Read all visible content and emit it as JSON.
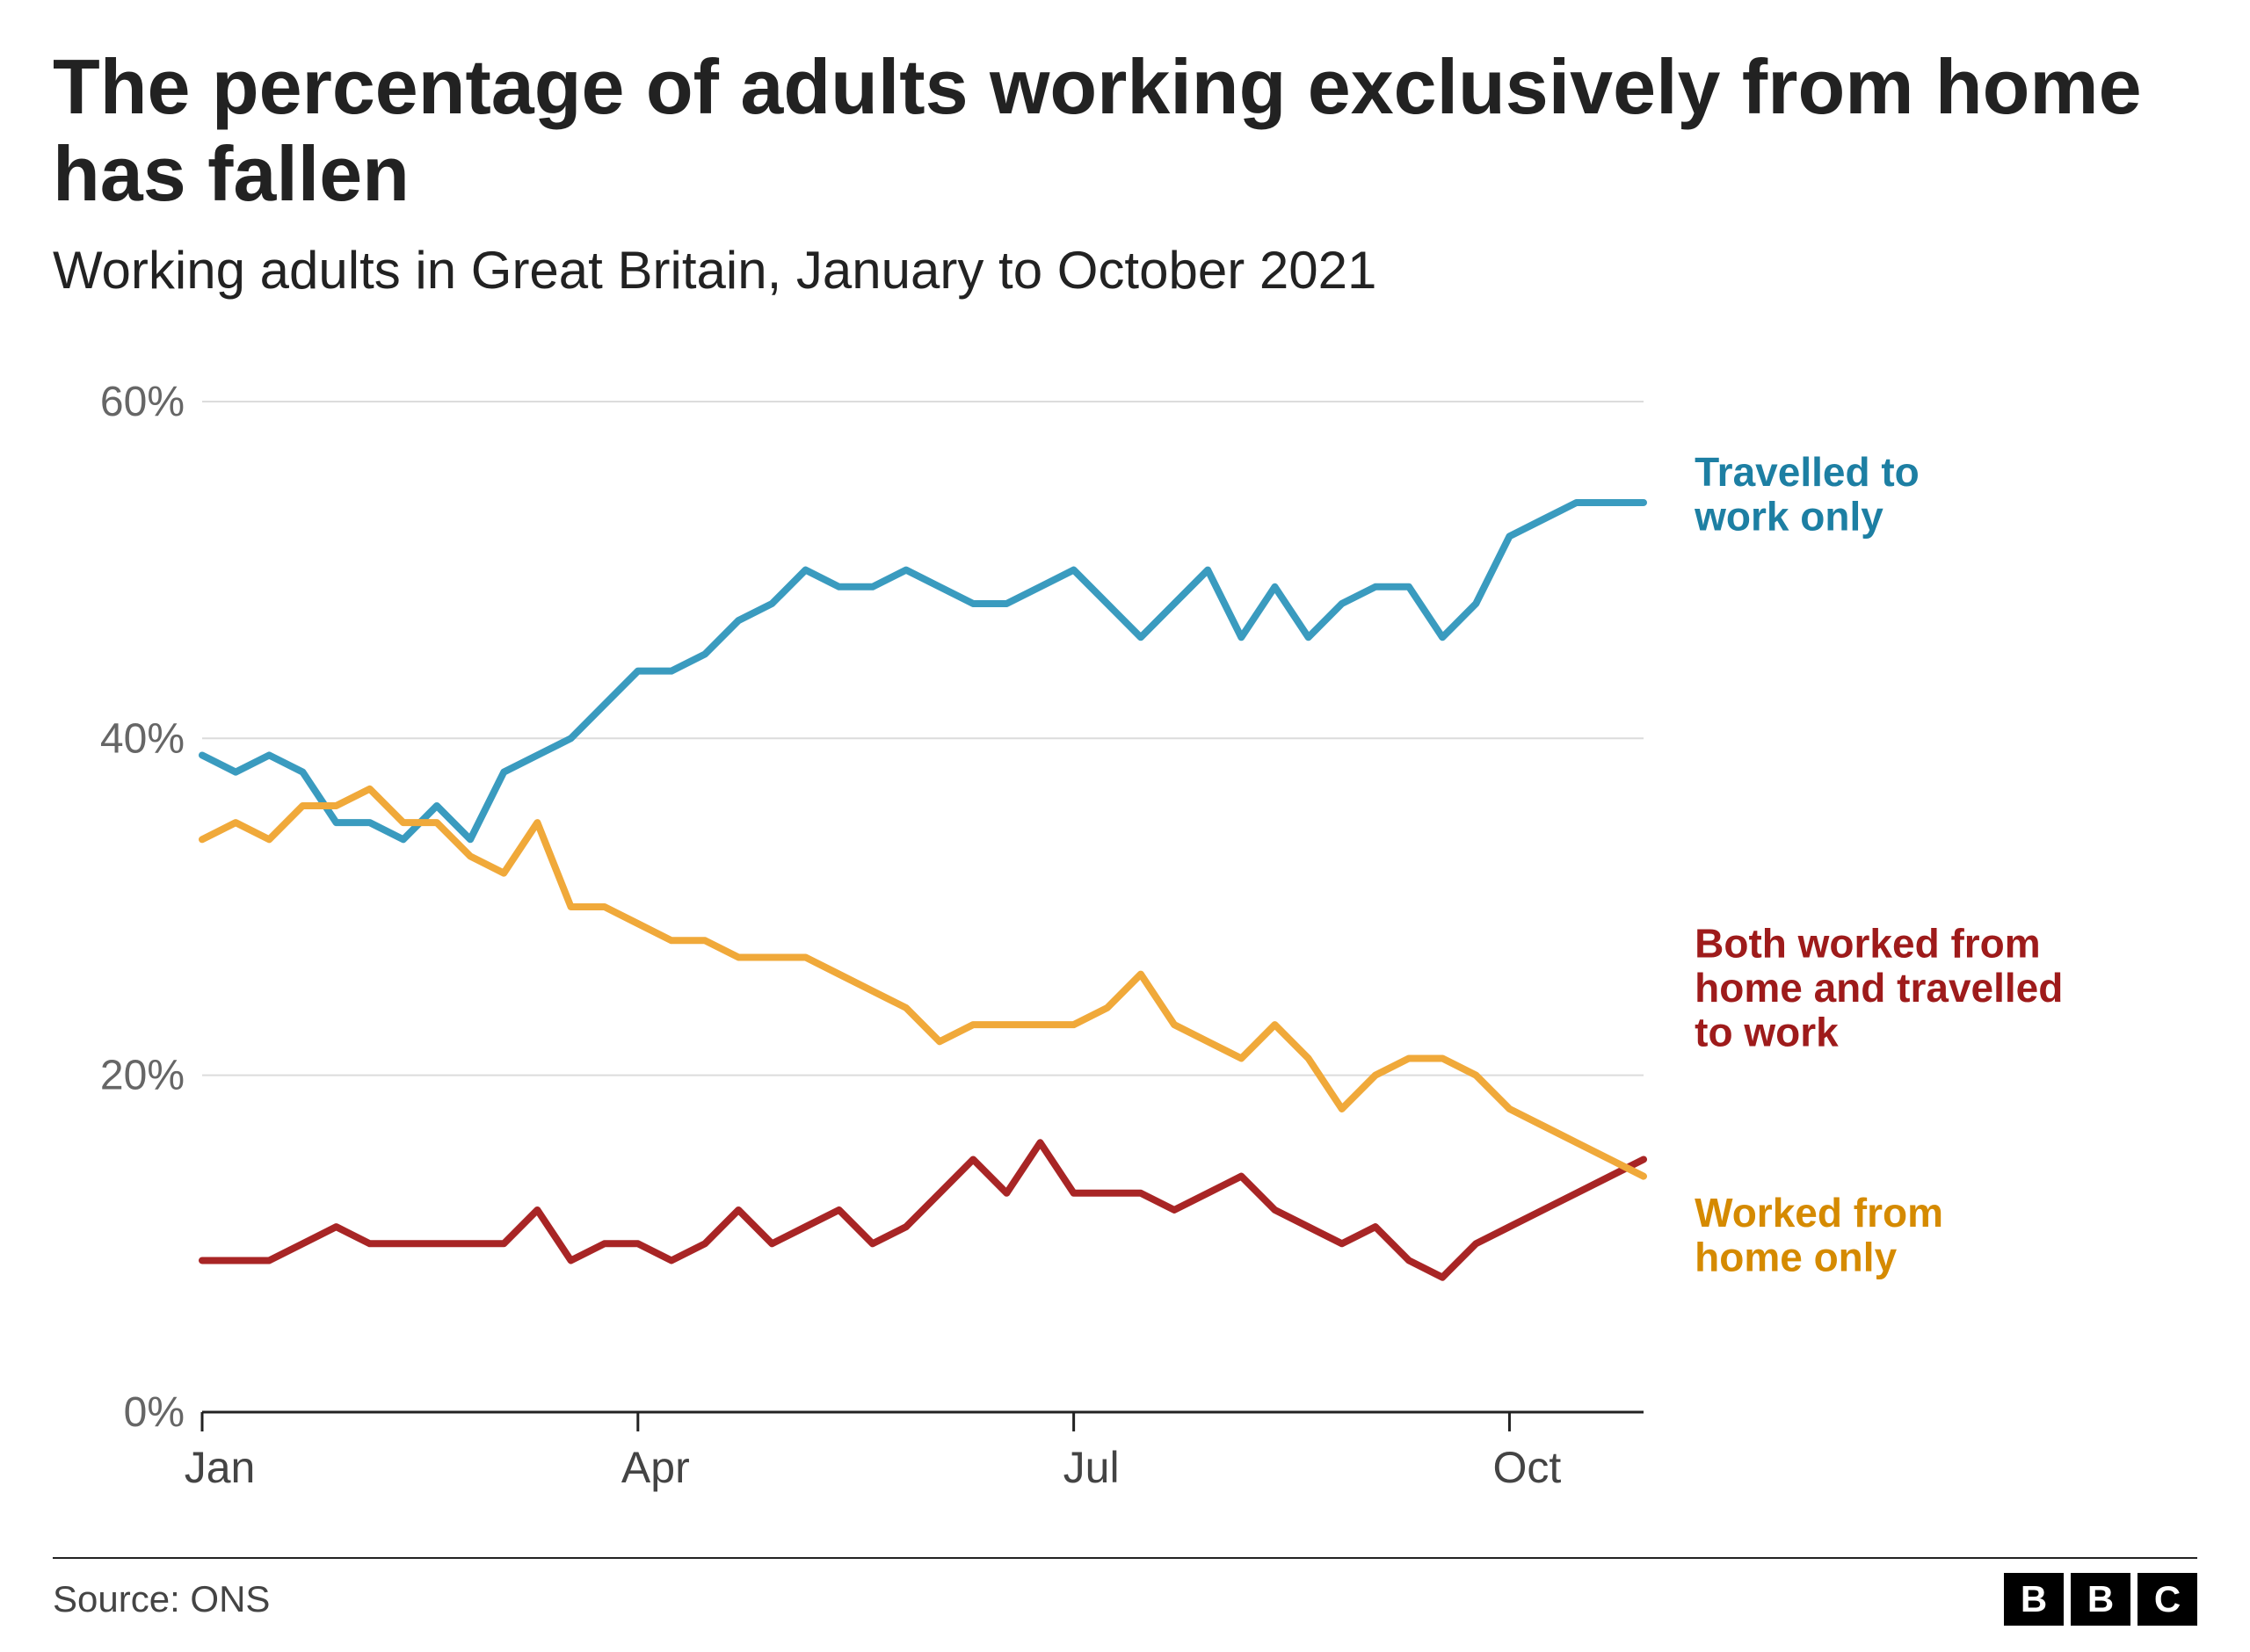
{
  "title": "The percentage of adults working exclusively from home has fallen",
  "subtitle": "Working adults in Great Britain, January to October 2021",
  "source": "Source: ONS",
  "logo_letters": [
    "B",
    "B",
    "C"
  ],
  "chart": {
    "type": "line",
    "background_color": "#ffffff",
    "grid_color": "#dcdcdc",
    "axis_color": "#222222",
    "ytick_label_color": "#666666",
    "xtick_label_color": "#444444",
    "ylim": [
      0,
      60
    ],
    "yticks": [
      0,
      20,
      40,
      60
    ],
    "ytick_labels": [
      "0%",
      "20%",
      "40%",
      "60%"
    ],
    "x_domain": [
      0,
      43
    ],
    "xticks": [
      0,
      13,
      26,
      39
    ],
    "xtick_labels": [
      "Jan",
      "Apr",
      "Jul",
      "Oct"
    ],
    "line_width": 8,
    "label_fontsize": 46,
    "label_fontweight": 700,
    "series": [
      {
        "label": "Travelled to work only",
        "label_color": "#1d7fa3",
        "color": "#3a9bbf",
        "values": [
          39,
          38,
          39,
          38,
          35,
          35,
          34,
          36,
          34,
          38,
          39,
          40,
          42,
          44,
          44,
          45,
          47,
          48,
          50,
          49,
          49,
          50,
          49,
          48,
          48,
          49,
          50,
          48,
          46,
          48,
          50,
          46,
          49,
          46,
          48,
          49,
          49,
          46,
          48,
          52,
          53,
          54,
          54,
          54
        ]
      },
      {
        "label": "Both worked from home and travelled to work",
        "label_color": "#9e1b1b",
        "color": "#a82525",
        "values": [
          9,
          9,
          9,
          10,
          11,
          10,
          10,
          10,
          10,
          10,
          12,
          9,
          10,
          10,
          9,
          10,
          12,
          10,
          11,
          12,
          10,
          11,
          13,
          15,
          13,
          16,
          13,
          13,
          13,
          12,
          13,
          14,
          12,
          11,
          10,
          11,
          9,
          8,
          10,
          11,
          12,
          13,
          14,
          15
        ]
      },
      {
        "label": "Worked from home only",
        "label_color": "#d58a00",
        "color": "#f0a93a",
        "values": [
          34,
          35,
          34,
          36,
          36,
          37,
          35,
          35,
          33,
          32,
          35,
          30,
          30,
          29,
          28,
          28,
          27,
          27,
          27,
          26,
          25,
          24,
          22,
          23,
          23,
          23,
          23,
          24,
          26,
          23,
          22,
          21,
          23,
          21,
          18,
          20,
          21,
          21,
          20,
          18,
          17,
          16,
          15,
          14
        ]
      }
    ],
    "series_label_positions": [
      {
        "x": 44,
        "y": 55,
        "lines": [
          "Travelled to",
          "work only"
        ]
      },
      {
        "x": 44,
        "y": 27,
        "lines": [
          "Both worked from",
          "home and travelled",
          "to work"
        ]
      },
      {
        "x": 44,
        "y": 11,
        "lines": [
          "Worked from",
          "home only"
        ]
      }
    ]
  }
}
